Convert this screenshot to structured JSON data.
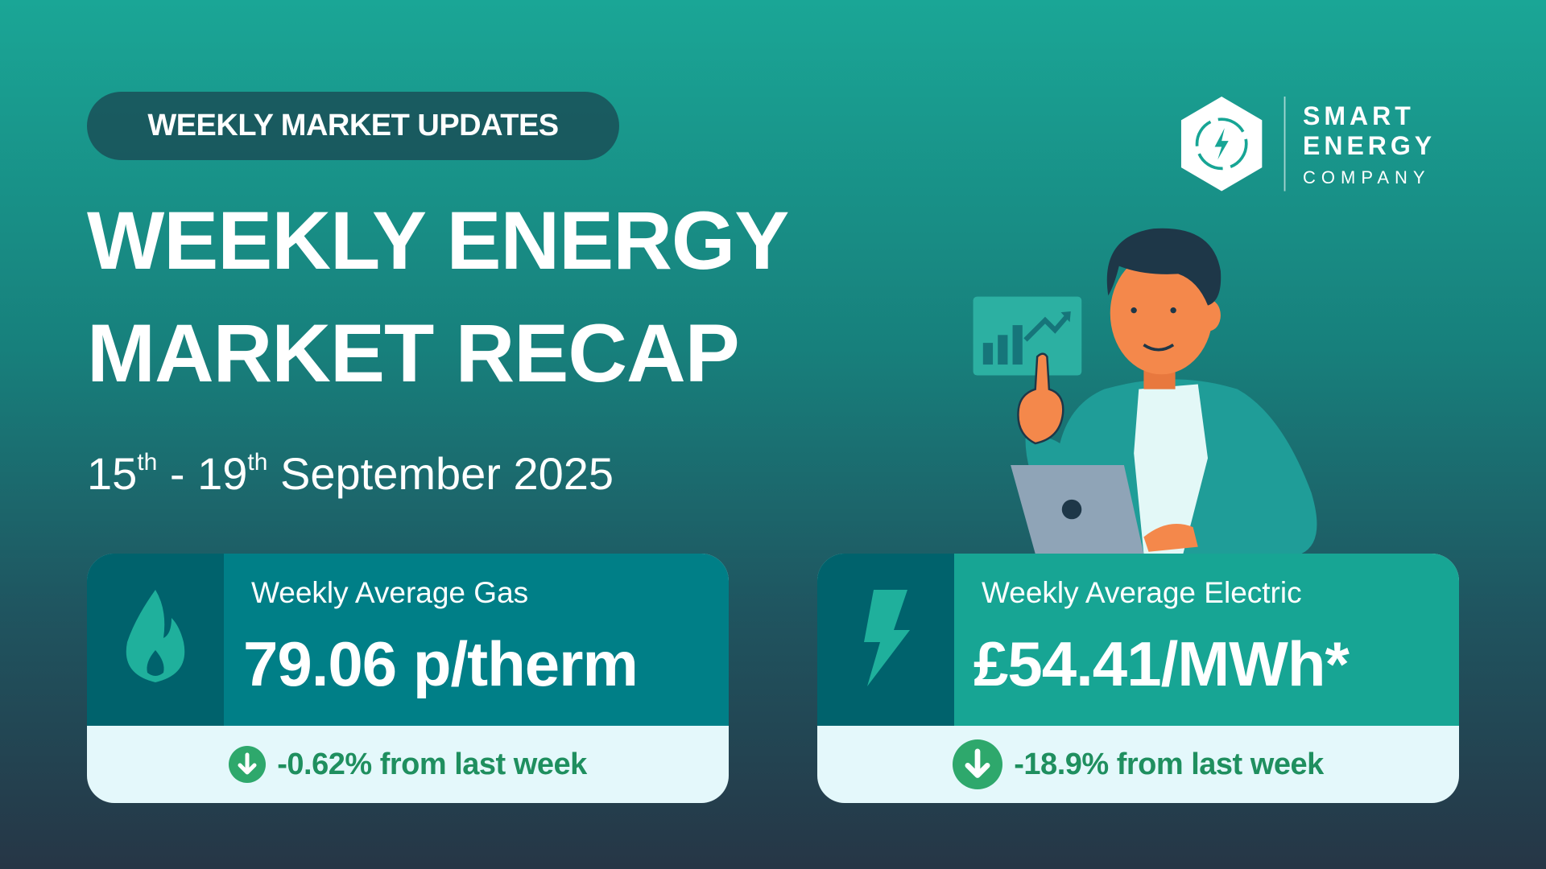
{
  "badge": "WEEKLY MARKET UPDATES",
  "title": {
    "line1": "WEEKLY ENERGY",
    "line2": "MARKET RECAP"
  },
  "date": {
    "start_day": "15",
    "start_suffix": "th",
    "separator": "-",
    "end_day": "19",
    "end_suffix": "th",
    "month_year": "September 2025"
  },
  "logo": {
    "line1": "SMART",
    "line2": "ENERGY",
    "line3": "COMPANY"
  },
  "cards": [
    {
      "label": "Weekly Average Gas",
      "value": "79.06 p/therm",
      "change": "-0.62% from last week"
    },
    {
      "label": "Weekly Average Electric",
      "value": "£54.41/MWh*",
      "change": "-18.9% from last week"
    }
  ]
}
